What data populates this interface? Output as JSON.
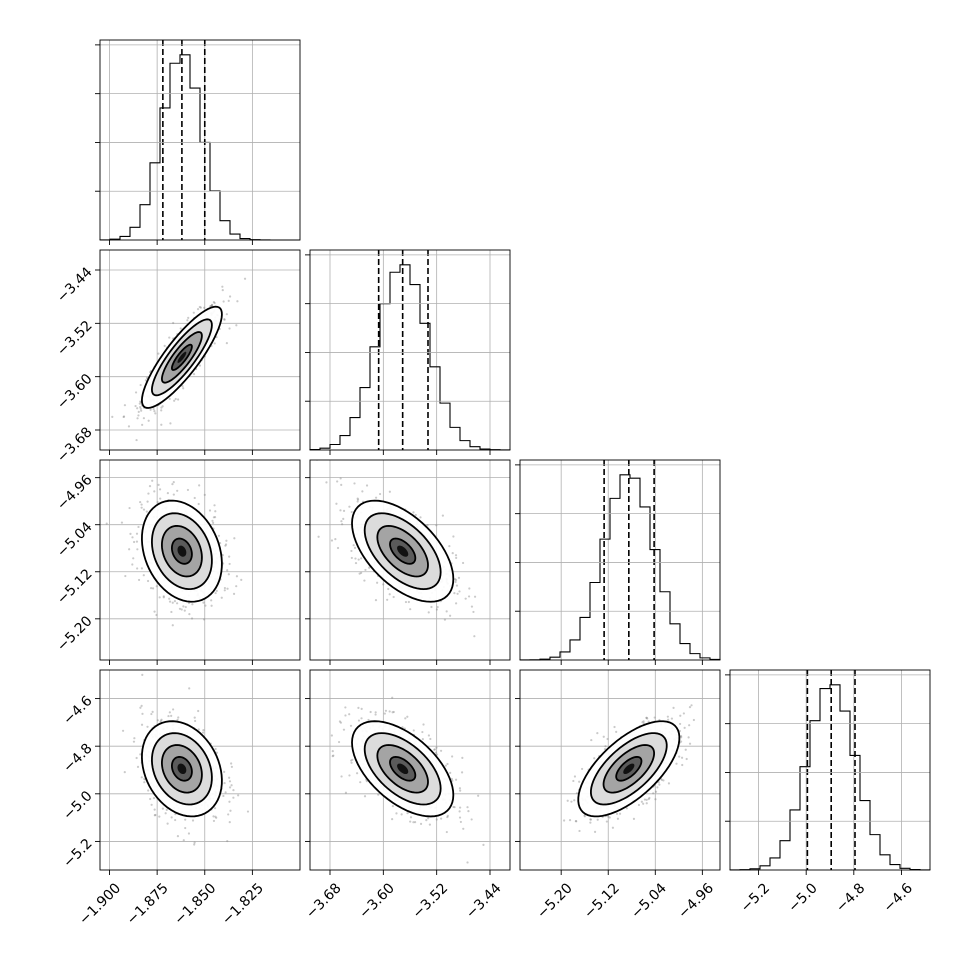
{
  "chart_data": {
    "type": "corner",
    "grid": true,
    "colors": {
      "ink": "#000000",
      "grid": "#b0b0b0",
      "points": "#8a8a8a"
    },
    "parameters": [
      {
        "range": [
          -1.905,
          -1.8
        ],
        "mean": -1.862,
        "sd": 0.0105,
        "q16": -1.872,
        "q50": -1.862,
        "q84": -1.85,
        "ticks": [
          -1.9,
          -1.875,
          -1.85,
          -1.825
        ],
        "tick_labels": [
          "−1.900",
          "−1.875",
          "−1.850",
          "−1.825"
        ]
      },
      {
        "range": [
          -3.71,
          -3.41
        ],
        "mean": -3.571,
        "sd": 0.038,
        "q16": -3.607,
        "q50": -3.571,
        "q84": -3.533,
        "ticks": [
          -3.68,
          -3.6,
          -3.52,
          -3.44
        ],
        "tick_labels": [
          "−3.68",
          "−3.60",
          "−3.52",
          "−3.44"
        ]
      },
      {
        "range": [
          -5.27,
          -4.93
        ],
        "mean": -5.085,
        "sd": 0.043,
        "q16": -5.127,
        "q50": -5.085,
        "q84": -5.042,
        "ticks": [
          -5.2,
          -5.12,
          -5.04,
          -4.96
        ],
        "tick_labels": [
          "−5.20",
          "−5.12",
          "−5.04",
          "−4.96"
        ]
      },
      {
        "range": [
          -5.32,
          -4.48
        ],
        "mean": -4.895,
        "sd": 0.1,
        "q16": -4.995,
        "q50": -4.895,
        "q84": -4.795,
        "ticks": [
          -5.2,
          -5.0,
          -4.8,
          -4.6
        ],
        "tick_labels": [
          "−5.2",
          "−5.0",
          "−4.8",
          "−4.6"
        ]
      }
    ],
    "correlations": [
      [
        1,
        0.85,
        -0.25,
        -0.25
      ],
      [
        0.85,
        1,
        -0.55,
        -0.55
      ],
      [
        -0.25,
        -0.55,
        1,
        0.65
      ],
      [
        -0.25,
        -0.55,
        0.65,
        1
      ]
    ],
    "histogram_bins": 20,
    "quantiles": [
      0.16,
      0.5,
      0.84
    ],
    "contour_levels_sigma": [
      0.5,
      1.0,
      1.5,
      2.0
    ],
    "scatter_points": 700
  }
}
